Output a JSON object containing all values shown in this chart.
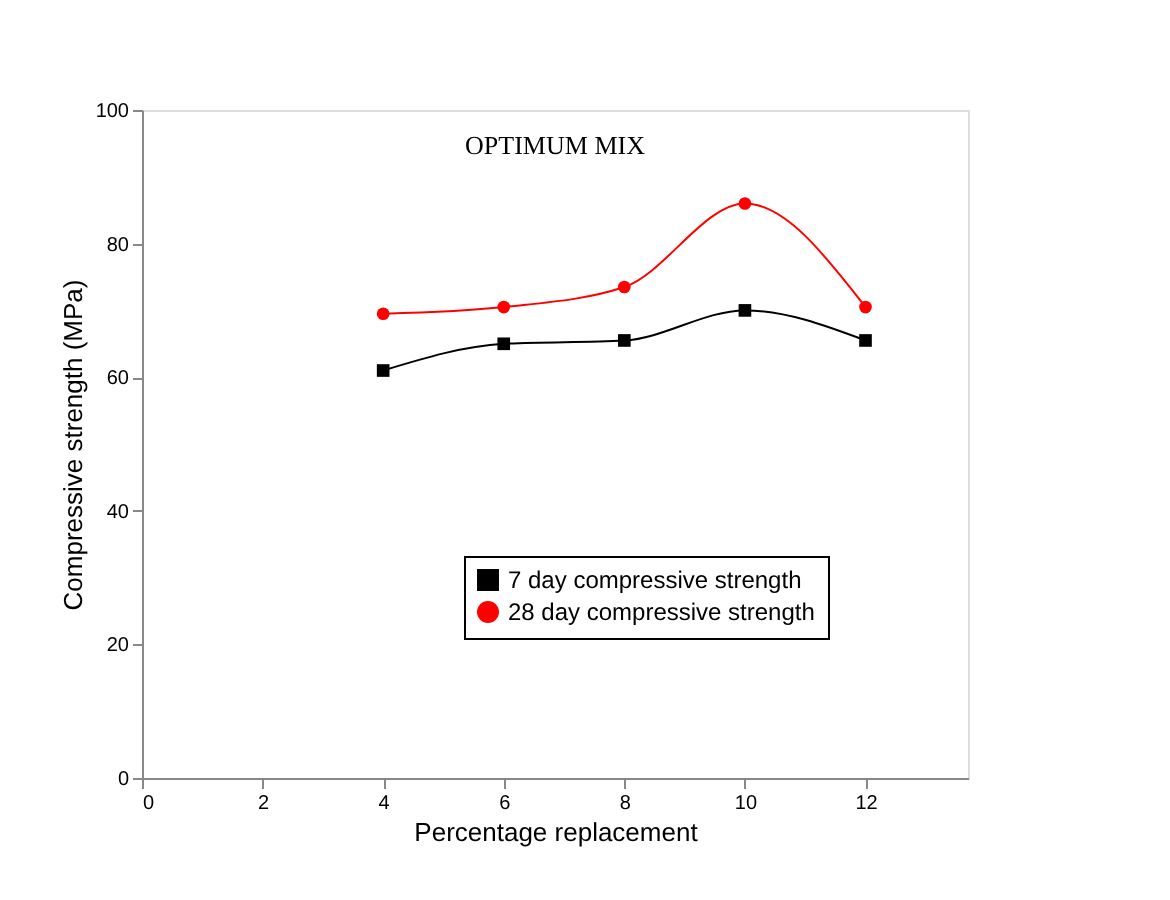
{
  "chart_data": {
    "type": "line",
    "title": "OPTIMUM MIX",
    "xlabel": "Percentage replacement",
    "ylabel": "Compressive strength (MPa)",
    "x": [
      4,
      6,
      8,
      10,
      12
    ],
    "series": [
      {
        "name": "7 day compressive strength",
        "color": "#000000",
        "marker": "square",
        "values": [
          61,
          65,
          65.5,
          70,
          65.5
        ]
      },
      {
        "name": "28 day compressive strength",
        "color": "#ff0000",
        "marker": "circle",
        "values": [
          69.5,
          70.5,
          73.5,
          86,
          70.5
        ]
      }
    ],
    "xlim": [
      0,
      13.7
    ],
    "xticks": [
      0,
      2,
      4,
      6,
      8,
      10,
      12
    ],
    "ylim": [
      0,
      100
    ],
    "yticks": [
      0,
      20,
      40,
      60,
      80,
      100
    ],
    "grid": false,
    "legend": "bottom right",
    "line_style": "solid"
  }
}
